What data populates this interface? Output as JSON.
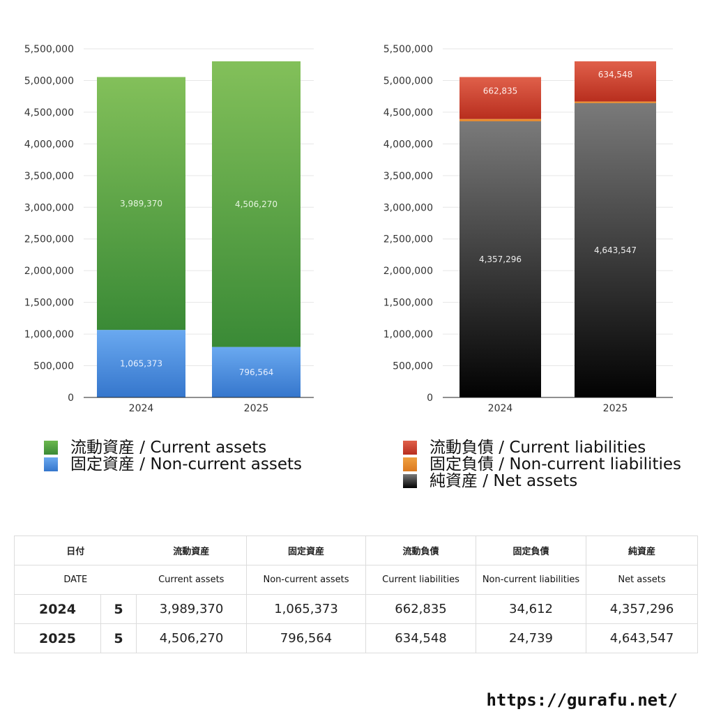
{
  "chart_data": [
    {
      "type": "bar",
      "stacked": true,
      "categories": [
        "2024",
        "2025"
      ],
      "ylim": [
        0,
        5500000
      ],
      "yticks": [
        0,
        500000,
        1000000,
        1500000,
        2000000,
        2500000,
        3000000,
        3500000,
        4000000,
        4500000,
        5000000,
        5500000
      ],
      "ytick_labels": [
        "0",
        "500,000",
        "1,000,000",
        "1,500,000",
        "2,000,000",
        "2,500,000",
        "3,000,000",
        "3,500,000",
        "4,000,000",
        "4,500,000",
        "5,000,000",
        "5,500,000"
      ],
      "grid": true,
      "series": [
        {
          "name": "固定資産 / Non-current assets",
          "values": [
            1065373,
            796564
          ],
          "labels": [
            "1,065,373",
            "796,564"
          ],
          "color": "#4a8fe0"
        },
        {
          "name": "流動資産 / Current assets",
          "values": [
            3989370,
            4506270
          ],
          "labels": [
            "3,989,370",
            "4,506,270"
          ],
          "color": "#4fa33f"
        }
      ]
    },
    {
      "type": "bar",
      "stacked": true,
      "categories": [
        "2024",
        "2025"
      ],
      "ylim": [
        0,
        5500000
      ],
      "yticks": [
        0,
        500000,
        1000000,
        1500000,
        2000000,
        2500000,
        3000000,
        3500000,
        4000000,
        4500000,
        5000000,
        5500000
      ],
      "ytick_labels": [
        "0",
        "500,000",
        "1,000,000",
        "1,500,000",
        "2,000,000",
        "2,500,000",
        "3,000,000",
        "3,500,000",
        "4,000,000",
        "4,500,000",
        "5,000,000",
        "5,500,000"
      ],
      "grid": true,
      "series": [
        {
          "name": "純資産 / Net assets",
          "values": [
            4357296,
            4643547
          ],
          "labels": [
            "4,357,296",
            "4,643,547"
          ],
          "color": "#333333"
        },
        {
          "name": "固定負債 / Non-current liabilities",
          "values": [
            34612,
            24739
          ],
          "labels": [
            "34,612",
            "24,739"
          ],
          "color": "#e8862a"
        },
        {
          "name": "流動負債 / Current liabilities",
          "values": [
            662835,
            634548
          ],
          "labels": [
            "662,835",
            "634,548"
          ],
          "color": "#c83a2a"
        }
      ]
    }
  ],
  "legend_left": [
    {
      "label": "流動資産 / Current assets",
      "color": "#4fa33f"
    },
    {
      "label": "固定資産 / Non-current assets",
      "color": "#4a8fe0"
    }
  ],
  "legend_right": [
    {
      "label": "流動負債 / Current liabilities",
      "color": "#c83a2a"
    },
    {
      "label": "固定負債 / Non-current liabilities",
      "color": "#e8862a"
    },
    {
      "label": "純資産 / Net assets",
      "color": "#333333"
    }
  ],
  "table": {
    "header_jp": [
      "日付",
      "流動資産",
      "固定資産",
      "流動負債",
      "固定負債",
      "純資産"
    ],
    "header_en": [
      "DATE",
      "Current assets",
      "Non-current assets",
      "Current liabilities",
      "Non-current liabilities",
      "Net assets"
    ],
    "rows": [
      {
        "year": "2024",
        "month": "5",
        "current_assets": "3,989,370",
        "noncurrent_assets": "1,065,373",
        "current_liabilities": "662,835",
        "noncurrent_liabilities": "34,612",
        "net_assets": "4,357,296"
      },
      {
        "year": "2025",
        "month": "5",
        "current_assets": "4,506,270",
        "noncurrent_assets": "796,564",
        "current_liabilities": "634,548",
        "noncurrent_liabilities": "24,739",
        "net_assets": "4,643,547"
      }
    ]
  },
  "footer_url": "https://gurafu.net/"
}
